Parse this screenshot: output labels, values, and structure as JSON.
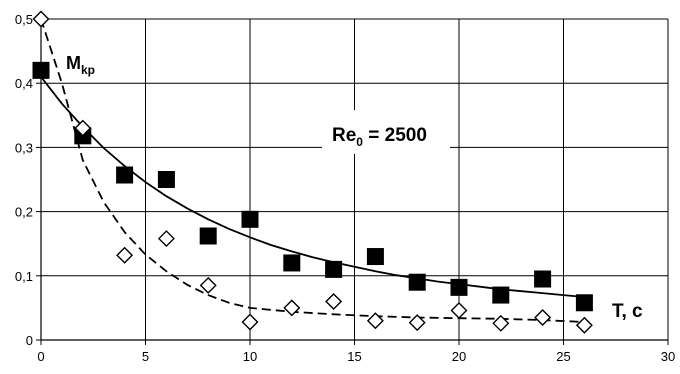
{
  "chart_data": {
    "type": "scatter",
    "title": "",
    "xlabel": "T, c",
    "ylabel": "M",
    "ylabel_subscript": "kp",
    "annotation": {
      "main": "Re",
      "sub": "0",
      "rest": " = 2500"
    },
    "xlim": [
      0,
      30
    ],
    "ylim": [
      0,
      0.5
    ],
    "x_ticks": [
      0,
      5,
      10,
      15,
      20,
      25,
      30
    ],
    "x_tick_labels": [
      "0",
      "5",
      "10",
      "15",
      "20",
      "25",
      "30"
    ],
    "y_ticks": [
      0,
      0.1,
      0.2,
      0.3,
      0.4,
      0.5
    ],
    "y_tick_labels": [
      "0",
      "0,1",
      "0,2",
      "0,3",
      "0,4",
      "0,5"
    ],
    "grid": true,
    "legend": "none",
    "series": [
      {
        "marker": "filled-square",
        "color": "#000000",
        "x": [
          0,
          2,
          4,
          6,
          8,
          10,
          12,
          14,
          16,
          18,
          20,
          22,
          24,
          26
        ],
        "y": [
          0.42,
          0.318,
          0.257,
          0.25,
          0.162,
          0.188,
          0.12,
          0.11,
          0.13,
          0.09,
          0.082,
          0.07,
          0.095,
          0.058
        ]
      },
      {
        "marker": "hollow-diamond",
        "color": "#000000",
        "x": [
          0,
          2,
          4,
          6,
          8,
          10,
          12,
          14,
          16,
          18,
          20,
          22,
          24,
          26
        ],
        "y": [
          0.5,
          0.33,
          0.132,
          0.158,
          0.085,
          0.028,
          0.05,
          0.06,
          0.03,
          0.027,
          0.046,
          0.026,
          0.035,
          0.023
        ]
      }
    ],
    "fit_curves": [
      {
        "style": "solid",
        "x": [
          0,
          1,
          2,
          3,
          4,
          5,
          6,
          7,
          8,
          9,
          10,
          11,
          12,
          13,
          14,
          15,
          16,
          17,
          18,
          19,
          20,
          21,
          22,
          23,
          24,
          25,
          26
        ],
        "y": [
          0.41,
          0.368,
          0.332,
          0.299,
          0.271,
          0.246,
          0.224,
          0.205,
          0.188,
          0.173,
          0.16,
          0.148,
          0.138,
          0.129,
          0.121,
          0.114,
          0.107,
          0.101,
          0.096,
          0.091,
          0.087,
          0.083,
          0.079,
          0.076,
          0.073,
          0.07,
          0.067
        ]
      },
      {
        "style": "dashed",
        "x": [
          0,
          1,
          2,
          3,
          4,
          5,
          6,
          7,
          8,
          9,
          10,
          12,
          14,
          16,
          18,
          20,
          22,
          24,
          26
        ],
        "y": [
          0.5,
          0.4,
          0.28,
          0.215,
          0.168,
          0.133,
          0.107,
          0.086,
          0.07,
          0.058,
          0.05,
          0.044,
          0.04,
          0.037,
          0.035,
          0.034,
          0.033,
          0.031,
          0.028
        ]
      }
    ]
  }
}
